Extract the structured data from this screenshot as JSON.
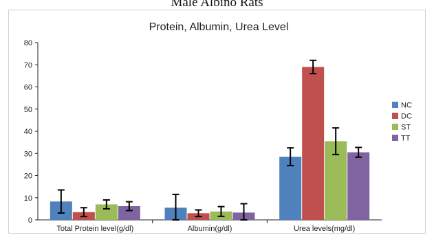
{
  "caption": "Male Albino Rats",
  "chart_data": {
    "type": "bar",
    "title": "Protein, Albumin, Urea Level",
    "categories": [
      "Total Protein level(g/dl)",
      "Albumin(g/dl)",
      "Urea levels(mg/dl)"
    ],
    "series": [
      {
        "name": "NC",
        "color": "#4f81bd",
        "values": [
          8.3,
          5.5,
          28.5
        ],
        "errors": [
          5.2,
          6.0,
          4.0
        ]
      },
      {
        "name": "DC",
        "color": "#c0504d",
        "values": [
          3.5,
          3.0,
          69.0
        ],
        "errors": [
          2.0,
          1.5,
          3.0
        ]
      },
      {
        "name": "ST",
        "color": "#9bbb59",
        "values": [
          7.0,
          3.8,
          35.5
        ],
        "errors": [
          2.0,
          2.2,
          6.0
        ]
      },
      {
        "name": "TT",
        "color": "#8064a2",
        "values": [
          6.2,
          3.3,
          30.5
        ],
        "errors": [
          2.0,
          4.0,
          2.2
        ]
      }
    ],
    "yticks": [
      0,
      10,
      20,
      30,
      40,
      50,
      60,
      70,
      80
    ],
    "ylim": [
      0,
      80
    ],
    "xlabel": "",
    "ylabel": "",
    "grid": false,
    "legend": "right"
  }
}
